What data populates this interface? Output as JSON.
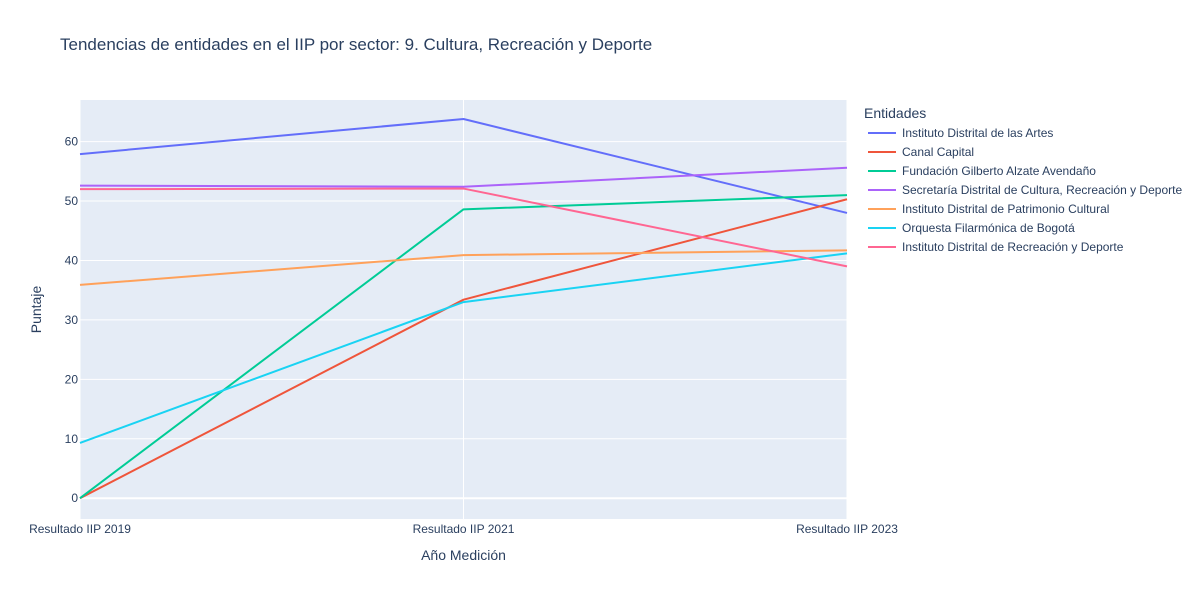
{
  "chart_data": {
    "type": "line",
    "title": "Tendencias de entidades en el IIP por sector: 9. Cultura, Recreación y Deporte",
    "xlabel": "Año Medición",
    "ylabel": "Puntaje",
    "categories": [
      "Resultado IIP 2019",
      "Resultado IIP 2021",
      "Resultado IIP 2023"
    ],
    "ylim": [
      -3.5,
      67
    ],
    "yticks": [
      0,
      10,
      20,
      30,
      40,
      50,
      60
    ],
    "grid": true,
    "legend_title": "Entidades",
    "legend_position": "right",
    "series": [
      {
        "name": "Instituto Distrital de las Artes",
        "color": "#636efa",
        "values": [
          57.9,
          63.8,
          48.0
        ]
      },
      {
        "name": "Canal Capital",
        "color": "#ef553b",
        "values": [
          0,
          33.4,
          50.3
        ]
      },
      {
        "name": "Fundación Gilberto Alzate Avendaño",
        "color": "#00cc96",
        "values": [
          0,
          48.6,
          51.0
        ]
      },
      {
        "name": "Secretaría Distrital de Cultura, Recreación y Deporte",
        "color": "#ab63fa",
        "values": [
          52.6,
          52.4,
          55.6
        ]
      },
      {
        "name": "Instituto Distrital de Patrimonio Cultural",
        "color": "#ffa15a",
        "values": [
          35.9,
          40.9,
          41.7
        ]
      },
      {
        "name": "Orquesta Filarmónica de Bogotá",
        "color": "#19d3f3",
        "values": [
          9.3,
          33.0,
          41.2
        ]
      },
      {
        "name": "Instituto Distrital de Recreación y Deporte",
        "color": "#ff6692",
        "values": [
          52.0,
          52.1,
          39.0
        ]
      }
    ]
  }
}
